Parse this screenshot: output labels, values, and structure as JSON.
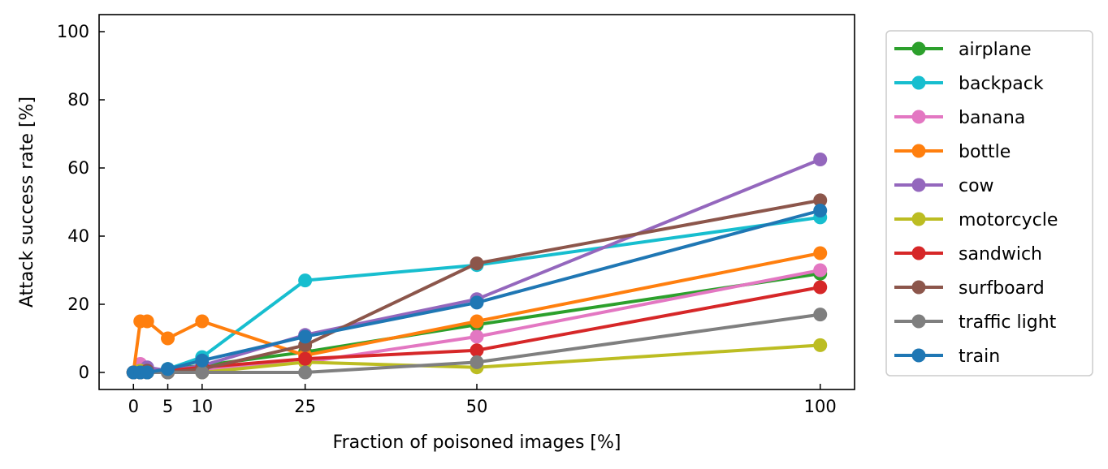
{
  "chart_data": {
    "type": "line",
    "xlabel": "Fraction of poisoned images [%]",
    "ylabel": "Attack success rate [%]",
    "xlim": [
      -5,
      105
    ],
    "ylim": [
      -5,
      105
    ],
    "xticks": [
      0,
      5,
      10,
      25,
      50,
      100
    ],
    "yticks": [
      0,
      20,
      40,
      60,
      80,
      100
    ],
    "legend_position": "outside-right",
    "series": [
      {
        "name": "airplane",
        "color": "#2ca02c",
        "x": [
          0,
          1,
          2,
          5,
          10,
          25,
          50,
          100
        ],
        "y": [
          0,
          0,
          0,
          1,
          2,
          6,
          14,
          29
        ]
      },
      {
        "name": "backpack",
        "color": "#17becf",
        "x": [
          0,
          1,
          2,
          5,
          10,
          25,
          50,
          100
        ],
        "y": [
          0,
          0,
          0,
          1,
          4.5,
          27,
          31.5,
          45.5
        ]
      },
      {
        "name": "banana",
        "color": "#e377c2",
        "x": [
          0,
          1,
          2,
          5,
          10,
          25,
          50,
          100
        ],
        "y": [
          0,
          2.5,
          1,
          0,
          1,
          3,
          10.5,
          30
        ]
      },
      {
        "name": "bottle",
        "color": "#ff7f0e",
        "x": [
          0,
          1,
          2,
          5,
          10,
          25,
          50,
          100
        ],
        "y": [
          0,
          15,
          15,
          10,
          15,
          5,
          15,
          35
        ]
      },
      {
        "name": "cow",
        "color": "#9467bd",
        "x": [
          0,
          1,
          2,
          5,
          10,
          25,
          50,
          100
        ],
        "y": [
          0,
          0.5,
          1.5,
          0.5,
          2,
          11,
          21.5,
          62.5
        ]
      },
      {
        "name": "motorcycle",
        "color": "#bcbd22",
        "x": [
          0,
          1,
          2,
          5,
          10,
          25,
          50,
          100
        ],
        "y": [
          0,
          0.5,
          0,
          0,
          0,
          3,
          1.5,
          8
        ]
      },
      {
        "name": "sandwich",
        "color": "#d62728",
        "x": [
          0,
          1,
          2,
          5,
          10,
          25,
          50,
          100
        ],
        "y": [
          0,
          0,
          0,
          0.5,
          1.5,
          4,
          6.5,
          25
        ]
      },
      {
        "name": "surfboard",
        "color": "#8c564b",
        "x": [
          0,
          1,
          2,
          5,
          10,
          25,
          50,
          100
        ],
        "y": [
          0,
          0,
          0.5,
          0,
          1,
          8,
          32,
          50.5
        ]
      },
      {
        "name": "traffic light",
        "color": "#7f7f7f",
        "x": [
          0,
          1,
          2,
          5,
          10,
          25,
          50,
          100
        ],
        "y": [
          0,
          0,
          0,
          0,
          0,
          0,
          3,
          17
        ]
      },
      {
        "name": "train",
        "color": "#1f77b4",
        "x": [
          0,
          1,
          2,
          5,
          10,
          25,
          50,
          100
        ],
        "y": [
          0,
          0,
          0,
          1,
          3.5,
          10.5,
          20.5,
          47.5
        ]
      }
    ]
  }
}
